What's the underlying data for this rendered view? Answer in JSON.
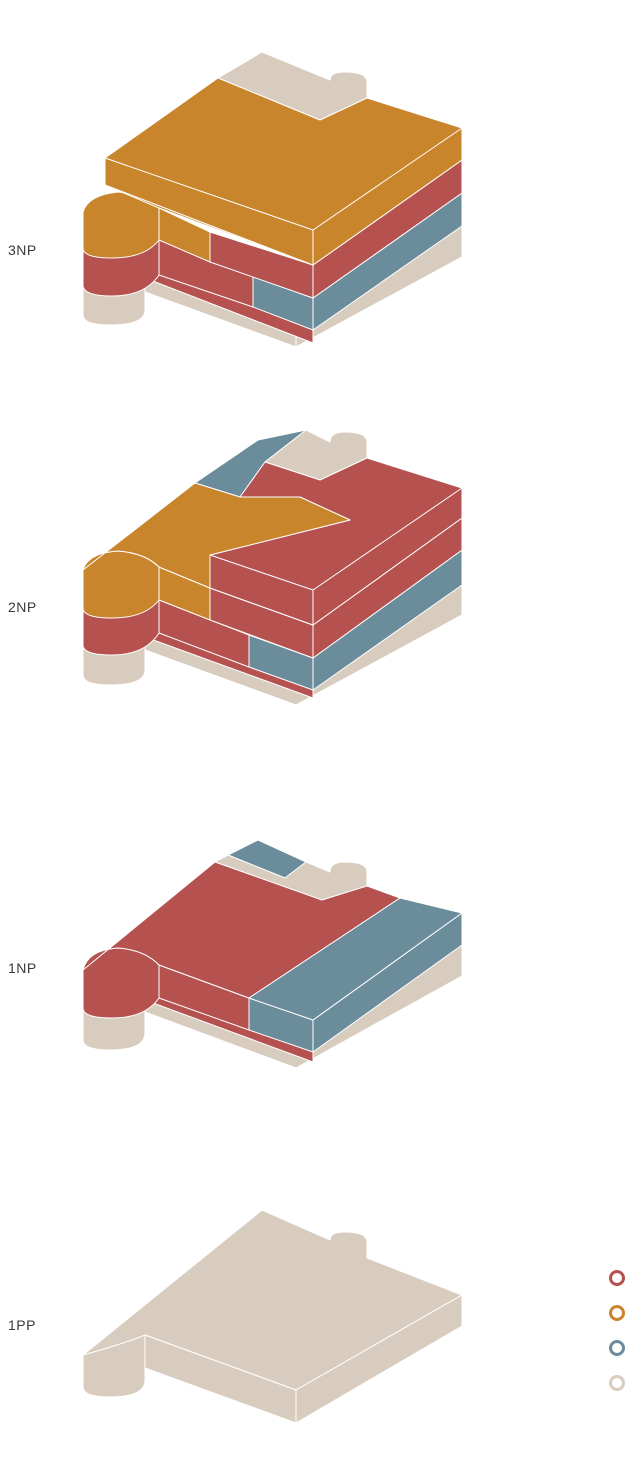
{
  "floors": [
    {
      "id": "3np",
      "label": "3NP"
    },
    {
      "id": "2np",
      "label": "2NP"
    },
    {
      "id": "1np",
      "label": "1NP"
    },
    {
      "id": "1pp",
      "label": "1PP"
    }
  ],
  "legend": [
    {
      "color": "#b5524f",
      "label": ""
    },
    {
      "color": "#c9852c",
      "label": ""
    },
    {
      "color": "#6b8c9b",
      "label": ""
    },
    {
      "color": "#d8ccbf",
      "label": ""
    }
  ],
  "colors": {
    "red": "#b5524f",
    "orange": "#c9852c",
    "blue": "#6b8c9b",
    "beige": "#d8ccbf"
  }
}
